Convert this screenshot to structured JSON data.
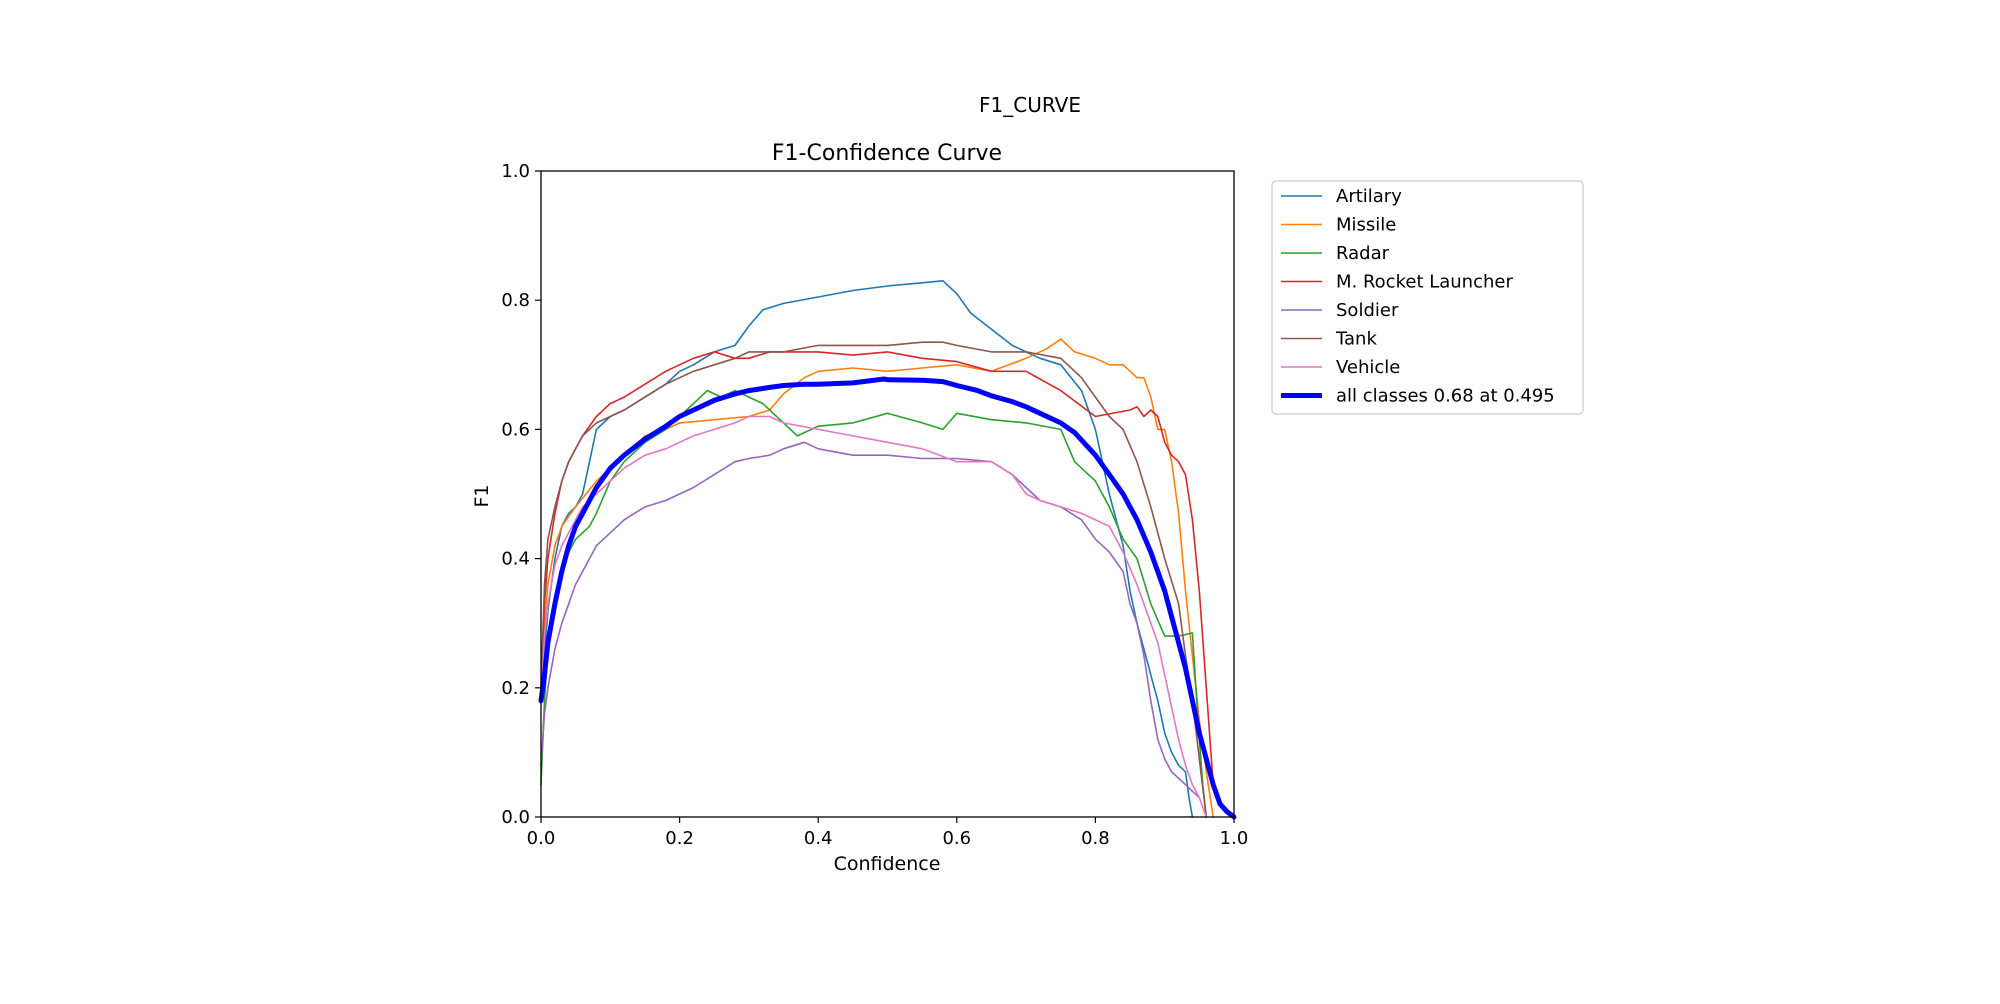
{
  "figure": {
    "suptitle": "F1_CURVE"
  },
  "chart_data": {
    "type": "line",
    "title": "F1-Confidence Curve",
    "xlabel": "Confidence",
    "ylabel": "F1",
    "xlim": [
      0,
      1
    ],
    "ylim": [
      0,
      1
    ],
    "xticks": [
      "0.0",
      "0.2",
      "0.4",
      "0.6",
      "0.8",
      "1.0"
    ],
    "yticks": [
      "0.0",
      "0.2",
      "0.4",
      "0.6",
      "0.8",
      "1.0"
    ],
    "grid": false,
    "legend_position": "outside-right",
    "series": [
      {
        "name": "Artilary",
        "color": "#1f77b4",
        "width": 1.6,
        "x": [
          0.0,
          0.005,
          0.01,
          0.02,
          0.03,
          0.04,
          0.05,
          0.06,
          0.07,
          0.08,
          0.1,
          0.12,
          0.15,
          0.18,
          0.2,
          0.22,
          0.25,
          0.28,
          0.3,
          0.32,
          0.35,
          0.4,
          0.45,
          0.5,
          0.55,
          0.58,
          0.6,
          0.62,
          0.65,
          0.68,
          0.7,
          0.72,
          0.75,
          0.78,
          0.8,
          0.82,
          0.84,
          0.85,
          0.86,
          0.87,
          0.88,
          0.89,
          0.9,
          0.91,
          0.92,
          0.93,
          0.935,
          0.94
        ],
        "y": [
          0.18,
          0.25,
          0.32,
          0.4,
          0.45,
          0.47,
          0.48,
          0.5,
          0.55,
          0.6,
          0.62,
          0.63,
          0.65,
          0.67,
          0.69,
          0.7,
          0.72,
          0.73,
          0.76,
          0.785,
          0.795,
          0.805,
          0.815,
          0.822,
          0.827,
          0.83,
          0.81,
          0.78,
          0.755,
          0.73,
          0.72,
          0.71,
          0.7,
          0.66,
          0.6,
          0.5,
          0.42,
          0.35,
          0.3,
          0.26,
          0.22,
          0.18,
          0.13,
          0.1,
          0.08,
          0.07,
          0.03,
          0.0
        ]
      },
      {
        "name": "Missile",
        "color": "#ff7f0e",
        "width": 1.6,
        "x": [
          0.0,
          0.005,
          0.01,
          0.02,
          0.03,
          0.05,
          0.08,
          0.1,
          0.13,
          0.15,
          0.18,
          0.2,
          0.25,
          0.3,
          0.33,
          0.35,
          0.38,
          0.4,
          0.45,
          0.5,
          0.55,
          0.6,
          0.65,
          0.7,
          0.73,
          0.75,
          0.77,
          0.8,
          0.82,
          0.84,
          0.86,
          0.87,
          0.88,
          0.89,
          0.9,
          0.91,
          0.92,
          0.93,
          0.94,
          0.95,
          0.96,
          0.97
        ],
        "y": [
          0.18,
          0.3,
          0.36,
          0.42,
          0.45,
          0.48,
          0.52,
          0.54,
          0.57,
          0.59,
          0.6,
          0.61,
          0.615,
          0.62,
          0.63,
          0.655,
          0.68,
          0.69,
          0.695,
          0.69,
          0.695,
          0.7,
          0.69,
          0.71,
          0.725,
          0.74,
          0.72,
          0.71,
          0.7,
          0.7,
          0.68,
          0.68,
          0.65,
          0.6,
          0.6,
          0.55,
          0.47,
          0.35,
          0.25,
          0.15,
          0.07,
          0.0
        ]
      },
      {
        "name": "Radar",
        "color": "#2ca02c",
        "width": 1.6,
        "x": [
          0.0,
          0.005,
          0.01,
          0.02,
          0.03,
          0.04,
          0.05,
          0.06,
          0.07,
          0.08,
          0.1,
          0.12,
          0.15,
          0.18,
          0.2,
          0.22,
          0.24,
          0.26,
          0.28,
          0.3,
          0.32,
          0.35,
          0.37,
          0.4,
          0.45,
          0.5,
          0.55,
          0.58,
          0.6,
          0.65,
          0.7,
          0.75,
          0.77,
          0.8,
          0.82,
          0.84,
          0.86,
          0.88,
          0.9,
          0.92,
          0.94,
          0.945,
          0.95,
          0.955,
          0.96
        ],
        "y": [
          0.05,
          0.18,
          0.26,
          0.33,
          0.38,
          0.41,
          0.43,
          0.44,
          0.45,
          0.47,
          0.52,
          0.55,
          0.58,
          0.6,
          0.62,
          0.64,
          0.66,
          0.65,
          0.66,
          0.65,
          0.64,
          0.61,
          0.59,
          0.605,
          0.61,
          0.625,
          0.61,
          0.6,
          0.625,
          0.615,
          0.61,
          0.6,
          0.55,
          0.52,
          0.48,
          0.43,
          0.4,
          0.33,
          0.28,
          0.28,
          0.285,
          0.2,
          0.12,
          0.05,
          0.0
        ]
      },
      {
        "name": "M. Rocket Launcher",
        "color": "#d62728",
        "width": 1.6,
        "x": [
          0.0,
          0.005,
          0.01,
          0.02,
          0.03,
          0.04,
          0.05,
          0.06,
          0.08,
          0.1,
          0.12,
          0.15,
          0.18,
          0.2,
          0.22,
          0.25,
          0.28,
          0.3,
          0.33,
          0.35,
          0.4,
          0.45,
          0.5,
          0.55,
          0.6,
          0.65,
          0.7,
          0.75,
          0.8,
          0.85,
          0.86,
          0.87,
          0.88,
          0.89,
          0.9,
          0.91,
          0.92,
          0.93,
          0.94,
          0.95,
          0.96,
          0.97
        ],
        "y": [
          0.2,
          0.33,
          0.4,
          0.47,
          0.52,
          0.55,
          0.57,
          0.59,
          0.62,
          0.64,
          0.65,
          0.67,
          0.69,
          0.7,
          0.71,
          0.72,
          0.71,
          0.71,
          0.72,
          0.72,
          0.72,
          0.715,
          0.72,
          0.71,
          0.705,
          0.69,
          0.69,
          0.66,
          0.62,
          0.63,
          0.635,
          0.62,
          0.63,
          0.62,
          0.58,
          0.56,
          0.55,
          0.53,
          0.46,
          0.35,
          0.2,
          0.05
        ]
      },
      {
        "name": "Soldier",
        "color": "#9467bd",
        "width": 1.6,
        "x": [
          0.0,
          0.005,
          0.01,
          0.02,
          0.03,
          0.04,
          0.05,
          0.06,
          0.08,
          0.1,
          0.12,
          0.15,
          0.18,
          0.2,
          0.22,
          0.25,
          0.28,
          0.3,
          0.33,
          0.35,
          0.38,
          0.4,
          0.45,
          0.5,
          0.55,
          0.6,
          0.65,
          0.68,
          0.7,
          0.72,
          0.75,
          0.78,
          0.8,
          0.82,
          0.84,
          0.85,
          0.86,
          0.87,
          0.88,
          0.89,
          0.9,
          0.91,
          0.92,
          0.93,
          0.94,
          0.95
        ],
        "y": [
          0.08,
          0.16,
          0.2,
          0.26,
          0.3,
          0.33,
          0.36,
          0.38,
          0.42,
          0.44,
          0.46,
          0.48,
          0.49,
          0.5,
          0.51,
          0.53,
          0.55,
          0.555,
          0.56,
          0.57,
          0.58,
          0.57,
          0.56,
          0.56,
          0.555,
          0.555,
          0.55,
          0.53,
          0.51,
          0.49,
          0.48,
          0.46,
          0.43,
          0.41,
          0.38,
          0.33,
          0.3,
          0.25,
          0.18,
          0.12,
          0.09,
          0.07,
          0.06,
          0.05,
          0.04,
          0.03
        ]
      },
      {
        "name": "Tank",
        "color": "#8c564b",
        "width": 1.6,
        "x": [
          0.0,
          0.005,
          0.01,
          0.02,
          0.03,
          0.04,
          0.05,
          0.06,
          0.08,
          0.1,
          0.12,
          0.15,
          0.18,
          0.2,
          0.22,
          0.25,
          0.28,
          0.3,
          0.33,
          0.35,
          0.4,
          0.45,
          0.5,
          0.55,
          0.58,
          0.6,
          0.65,
          0.7,
          0.75,
          0.78,
          0.8,
          0.82,
          0.84,
          0.86,
          0.88,
          0.9,
          0.92,
          0.93,
          0.94,
          0.95,
          0.96
        ],
        "y": [
          0.2,
          0.36,
          0.43,
          0.48,
          0.52,
          0.55,
          0.57,
          0.59,
          0.61,
          0.62,
          0.63,
          0.65,
          0.67,
          0.68,
          0.69,
          0.7,
          0.71,
          0.72,
          0.72,
          0.72,
          0.73,
          0.73,
          0.73,
          0.735,
          0.735,
          0.73,
          0.72,
          0.72,
          0.71,
          0.68,
          0.65,
          0.62,
          0.6,
          0.55,
          0.48,
          0.4,
          0.33,
          0.25,
          0.18,
          0.09,
          0.0
        ]
      },
      {
        "name": "Vehicle",
        "color": "#e377c2",
        "width": 1.6,
        "x": [
          0.0,
          0.005,
          0.01,
          0.02,
          0.03,
          0.04,
          0.05,
          0.06,
          0.08,
          0.1,
          0.12,
          0.15,
          0.18,
          0.2,
          0.22,
          0.25,
          0.28,
          0.3,
          0.33,
          0.35,
          0.4,
          0.45,
          0.5,
          0.55,
          0.6,
          0.65,
          0.68,
          0.7,
          0.72,
          0.75,
          0.78,
          0.8,
          0.82,
          0.84,
          0.86,
          0.87,
          0.88,
          0.89,
          0.9,
          0.91,
          0.92,
          0.93,
          0.94,
          0.95,
          0.96
        ],
        "y": [
          0.18,
          0.28,
          0.33,
          0.39,
          0.42,
          0.44,
          0.46,
          0.48,
          0.5,
          0.52,
          0.54,
          0.56,
          0.57,
          0.58,
          0.59,
          0.6,
          0.61,
          0.62,
          0.62,
          0.61,
          0.6,
          0.59,
          0.58,
          0.57,
          0.55,
          0.55,
          0.53,
          0.5,
          0.49,
          0.48,
          0.47,
          0.46,
          0.45,
          0.41,
          0.36,
          0.33,
          0.3,
          0.27,
          0.22,
          0.17,
          0.12,
          0.08,
          0.05,
          0.03,
          0.0
        ]
      },
      {
        "name": "all classes 0.68 at 0.495",
        "color": "#0000ff",
        "width": 5,
        "x": [
          0.0,
          0.005,
          0.01,
          0.02,
          0.03,
          0.04,
          0.05,
          0.06,
          0.07,
          0.08,
          0.1,
          0.12,
          0.15,
          0.18,
          0.2,
          0.22,
          0.25,
          0.28,
          0.3,
          0.33,
          0.35,
          0.38,
          0.4,
          0.45,
          0.495,
          0.5,
          0.55,
          0.58,
          0.6,
          0.63,
          0.65,
          0.68,
          0.7,
          0.72,
          0.75,
          0.77,
          0.8,
          0.82,
          0.84,
          0.86,
          0.88,
          0.9,
          0.91,
          0.92,
          0.93,
          0.94,
          0.95,
          0.96,
          0.97,
          0.98,
          0.99,
          1.0
        ],
        "y": [
          0.18,
          0.22,
          0.27,
          0.33,
          0.38,
          0.42,
          0.45,
          0.47,
          0.49,
          0.51,
          0.54,
          0.56,
          0.585,
          0.605,
          0.62,
          0.63,
          0.645,
          0.655,
          0.66,
          0.665,
          0.668,
          0.67,
          0.67,
          0.672,
          0.678,
          0.677,
          0.676,
          0.674,
          0.668,
          0.66,
          0.652,
          0.643,
          0.635,
          0.625,
          0.61,
          0.595,
          0.56,
          0.53,
          0.5,
          0.46,
          0.41,
          0.35,
          0.31,
          0.27,
          0.23,
          0.18,
          0.13,
          0.09,
          0.05,
          0.02,
          0.008,
          0.0
        ]
      }
    ]
  }
}
